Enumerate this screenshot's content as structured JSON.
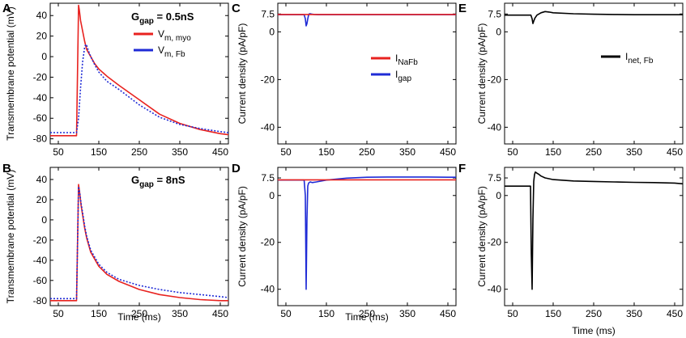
{
  "chart_data": [
    {
      "id": "A",
      "type": "line",
      "panel_label": "A",
      "ylabel": "Transmembrane potential (mV)",
      "xlabel": "",
      "xlim": [
        30,
        470
      ],
      "ylim": [
        -85,
        52
      ],
      "xticks": [
        50,
        150,
        250,
        350,
        450
      ],
      "yticks": [
        40,
        20,
        0,
        -20,
        -40,
        -60,
        -80
      ],
      "annotation": {
        "main": "G",
        "sub": "gap",
        "rest": " = 0.5nS"
      },
      "legend": [
        {
          "main": "V",
          "sub": "m, myo",
          "color": "#e8221f"
        },
        {
          "main": "V",
          "sub": "m, Fb",
          "color": "#1f2bd6"
        }
      ],
      "series": [
        {
          "name": "Vm, myo",
          "color": "#e8221f",
          "style": "solid",
          "x": [
            30,
            95,
            100,
            102,
            105,
            110,
            115,
            120,
            130,
            140,
            150,
            170,
            200,
            250,
            300,
            350,
            400,
            450,
            470
          ],
          "y": [
            -77,
            -77,
            50,
            45,
            35,
            25,
            15,
            7,
            0,
            -7,
            -12,
            -19,
            -28,
            -42,
            -56,
            -65,
            -71,
            -75,
            -76
          ]
        },
        {
          "name": "Vm, Fb",
          "color": "#1f2bd6",
          "style": "dotted",
          "x": [
            30,
            95,
            100,
            105,
            110,
            115,
            118,
            120,
            125,
            130,
            140,
            150,
            170,
            200,
            250,
            300,
            350,
            400,
            450,
            470
          ],
          "y": [
            -74,
            -74,
            -60,
            -30,
            -5,
            9,
            12,
            11,
            5,
            0,
            -8,
            -15,
            -24,
            -32,
            -47,
            -59,
            -66,
            -70,
            -73,
            -74
          ]
        }
      ]
    },
    {
      "id": "B",
      "type": "line",
      "panel_label": "B",
      "ylabel": "Transmembrane potential (mV)",
      "xlabel": "Time (ms)",
      "xlim": [
        30,
        470
      ],
      "ylim": [
        -85,
        52
      ],
      "xticks": [
        50,
        150,
        250,
        350,
        450
      ],
      "yticks": [
        40,
        20,
        0,
        -20,
        -40,
        -60,
        -80
      ],
      "annotation": {
        "main": "G",
        "sub": "gap",
        "rest": " = 8nS"
      },
      "legend": [],
      "series": [
        {
          "name": "Vm, myo",
          "color": "#e8221f",
          "style": "solid",
          "x": [
            30,
            95,
            100,
            103,
            106,
            110,
            115,
            120,
            130,
            150,
            170,
            200,
            250,
            300,
            350,
            400,
            450,
            470
          ],
          "y": [
            -80,
            -80,
            35,
            26,
            15,
            5,
            -8,
            -18,
            -32,
            -46,
            -54,
            -61,
            -69,
            -74,
            -77,
            -79,
            -80,
            -80
          ]
        },
        {
          "name": "Vm, Fb",
          "color": "#1f2bd6",
          "style": "dotted",
          "x": [
            30,
            95,
            100,
            103,
            106,
            110,
            115,
            120,
            130,
            150,
            170,
            200,
            250,
            300,
            350,
            400,
            450,
            470
          ],
          "y": [
            -78,
            -78,
            33,
            27,
            17,
            7,
            -6,
            -16,
            -30,
            -44,
            -52,
            -59,
            -65,
            -69,
            -72,
            -74,
            -76,
            -77
          ]
        }
      ]
    },
    {
      "id": "C",
      "type": "line",
      "panel_label": "C",
      "ylabel": "Current density (pA/pF)",
      "xlabel": "",
      "xlim": [
        30,
        470
      ],
      "ylim": [
        -47,
        12
      ],
      "xticks": [
        50,
        150,
        250,
        350,
        450
      ],
      "yticks": [
        7.5,
        0,
        -20,
        -40
      ],
      "ytick_labels": [
        "7.5",
        "0",
        "-20",
        "-40"
      ],
      "legend": [
        {
          "main": "I",
          "sub": "NaFb",
          "color": "#e8221f"
        },
        {
          "main": "I",
          "sub": "gap",
          "color": "#1f2bd6"
        }
      ],
      "series": [
        {
          "name": "Igap",
          "color": "#1f2bd6",
          "style": "solid",
          "x": [
            30,
            95,
            98,
            100,
            102,
            104,
            106,
            108,
            110,
            115,
            120,
            130,
            470
          ],
          "y": [
            7.2,
            7.2,
            5.5,
            2.5,
            3.5,
            5.5,
            7.0,
            7.6,
            7.6,
            7.4,
            7.3,
            7.2,
            7.2
          ]
        },
        {
          "name": "INaFb",
          "color": "#e8221f",
          "style": "solid",
          "x": [
            30,
            470
          ],
          "y": [
            7.3,
            7.3
          ]
        }
      ]
    },
    {
      "id": "D",
      "type": "line",
      "panel_label": "D",
      "ylabel": "Current density (pA/pF)",
      "xlabel": "Time (ms)",
      "xlim": [
        30,
        470
      ],
      "ylim": [
        -47,
        12
      ],
      "xticks": [
        50,
        150,
        250,
        350,
        450
      ],
      "yticks": [
        7.5,
        0,
        -20,
        -40
      ],
      "ytick_labels": [
        "7.5",
        "0",
        "-20",
        "-40"
      ],
      "legend": [],
      "series": [
        {
          "name": "Igap",
          "color": "#1f2bd6",
          "style": "solid",
          "x": [
            30,
            95,
            98,
            100,
            102,
            104,
            106,
            110,
            115,
            125,
            150,
            200,
            250,
            300,
            350,
            400,
            450,
            470
          ],
          "y": [
            6.6,
            6.6,
            0,
            -40,
            -10,
            4,
            5.3,
            5.8,
            5.5,
            5.8,
            6.6,
            7.4,
            7.8,
            7.9,
            7.9,
            7.9,
            7.8,
            7.8
          ]
        },
        {
          "name": "INaFb",
          "color": "#e8221f",
          "style": "solid",
          "x": [
            30,
            470
          ],
          "y": [
            6.7,
            6.7
          ]
        }
      ]
    },
    {
      "id": "E",
      "type": "line",
      "panel_label": "E",
      "ylabel": "Current density (pA/pF)",
      "xlabel": "",
      "xlim": [
        30,
        470
      ],
      "ylim": [
        -47,
        12
      ],
      "xticks": [
        50,
        150,
        250,
        350,
        450
      ],
      "yticks": [
        7.5,
        0,
        -20,
        -40
      ],
      "ytick_labels": [
        "7.5",
        "0",
        "-20",
        "-40"
      ],
      "legend": [
        {
          "main": "I",
          "sub": "net, Fb",
          "color": "#000000"
        }
      ],
      "series": [
        {
          "name": "Inet, Fb",
          "color": "#000000",
          "style": "solid",
          "x": [
            30,
            95,
            98,
            100,
            102,
            105,
            110,
            120,
            130,
            140,
            150,
            200,
            250,
            300,
            350,
            400,
            450,
            470
          ],
          "y": [
            7.0,
            7.0,
            5.5,
            3.5,
            4.5,
            5.8,
            7.0,
            8.0,
            8.5,
            8.3,
            8.0,
            7.6,
            7.4,
            7.3,
            7.2,
            7.2,
            7.2,
            7.2
          ]
        }
      ]
    },
    {
      "id": "F",
      "type": "line",
      "panel_label": "F",
      "ylabel": "Current density (pA/pF)",
      "xlabel": "Time (ms)",
      "xlim": [
        30,
        470
      ],
      "ylim": [
        -47,
        12
      ],
      "xticks": [
        50,
        150,
        250,
        350,
        450
      ],
      "yticks": [
        7.5,
        0,
        -20,
        -40
      ],
      "ytick_labels": [
        "7.5",
        "0",
        "-20",
        "-40"
      ],
      "legend": [],
      "series": [
        {
          "name": "Inet, Fb",
          "color": "#000000",
          "style": "solid",
          "x": [
            30,
            94,
            96,
            98,
            100,
            102,
            104,
            106,
            110,
            115,
            120,
            130,
            150,
            200,
            250,
            300,
            350,
            400,
            450,
            470
          ],
          "y": [
            4.0,
            4.0,
            -25,
            -40,
            -10,
            6,
            9,
            10,
            9.5,
            9,
            8.3,
            7.5,
            6.8,
            6.2,
            6.0,
            5.8,
            5.6,
            5.5,
            5.3,
            5.0
          ]
        }
      ]
    }
  ]
}
